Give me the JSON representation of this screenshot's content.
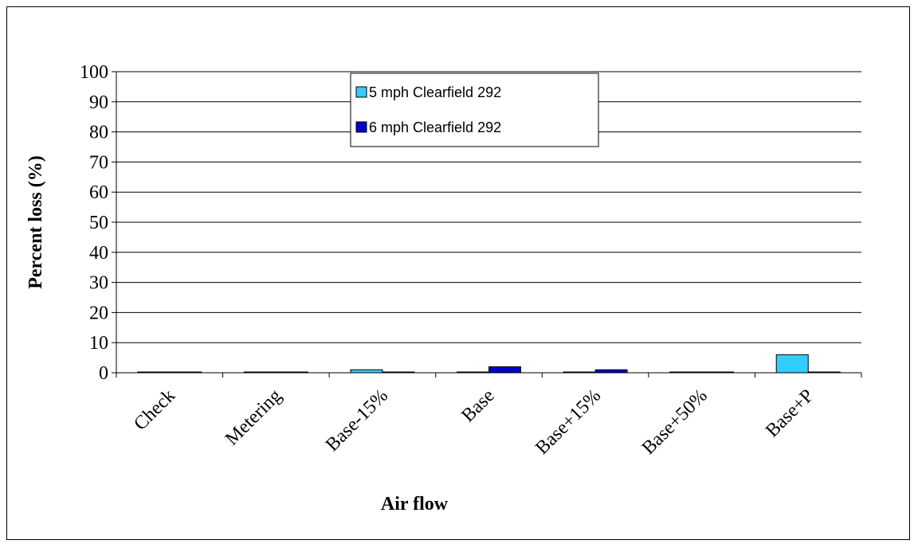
{
  "chart_data": {
    "type": "bar",
    "categories": [
      "Check",
      "Metering",
      "Base-15%",
      "Base",
      "Base+15%",
      "Base+50%",
      "Base+P"
    ],
    "series": [
      {
        "name": "5 mph Clearfield 292",
        "color": "#33CCFF",
        "values": [
          0,
          0,
          1,
          0,
          0,
          0,
          6
        ]
      },
      {
        "name": "6 mph Clearfield 292",
        "color": "#0000CC",
        "values": [
          0,
          0,
          0,
          2,
          1,
          0,
          0
        ]
      }
    ],
    "xlabel": "Air flow",
    "ylabel": "Percent loss (%)",
    "ylim": [
      0,
      100
    ],
    "yticks": [
      0,
      10,
      20,
      30,
      40,
      50,
      60,
      70,
      80,
      90,
      100
    ],
    "grid": true,
    "legend_position": "top-center"
  }
}
